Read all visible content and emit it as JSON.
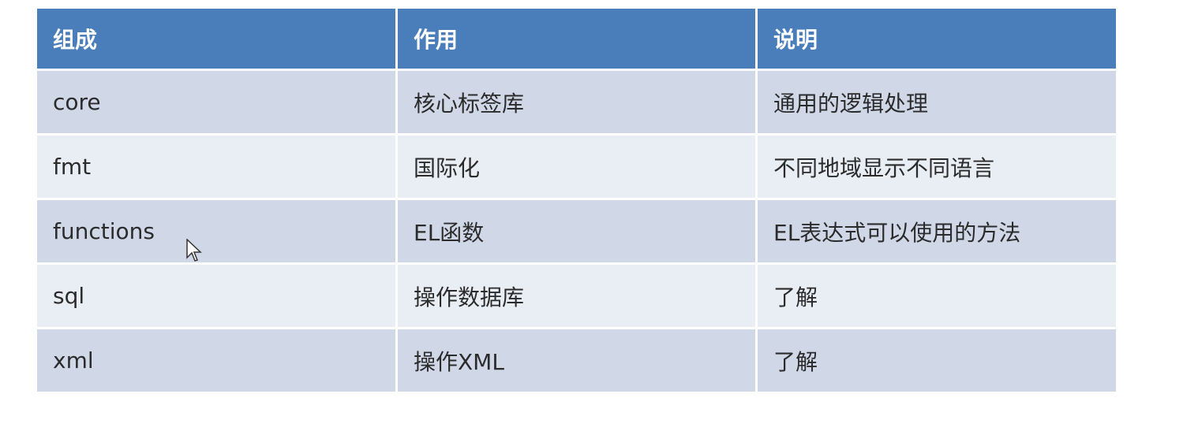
{
  "table": {
    "headers": [
      "组成",
      "作用",
      "说明"
    ],
    "rows": [
      [
        "core",
        "核心标签库",
        "通用的逻辑处理"
      ],
      [
        "fmt",
        "国际化",
        "不同地域显示不同语言"
      ],
      [
        "functions",
        "EL函数",
        "EL表达式可以使用的方法"
      ],
      [
        "sql",
        "操作数据库",
        "了解"
      ],
      [
        "xml",
        "操作XML",
        "了解"
      ]
    ]
  },
  "colors": {
    "header": "#4a7ebb",
    "row_odd": "#d0d8e8",
    "row_even": "#e9edf4"
  }
}
